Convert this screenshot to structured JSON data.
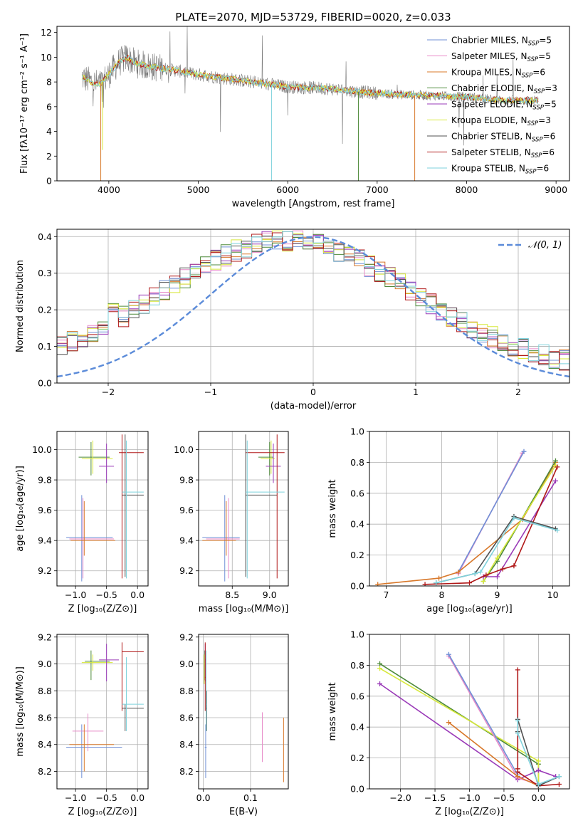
{
  "figure_title": "PLATE=2070, MJD=53729, FIBERID=0020, z=0.033",
  "colors": {
    "Chabrier MILES": "#6f8fd6",
    "Salpeter MILES": "#e88ac8",
    "Kroupa MILES": "#d8782a",
    "Chabrier ELODIE": "#4d8a3a",
    "Salpeter ELODIE": "#9a3ab8",
    "Kroupa ELODIE": "#d7e83a",
    "Chabrier STELIB": "#505050",
    "Salpeter STELIB": "#b01818",
    "Kroupa STELIB": "#7ed2dc",
    "normal_curve": "#5b8bd9",
    "grid": "#b0b0b0"
  },
  "chart_data": [
    {
      "id": "spectrum",
      "type": "line",
      "xlabel": "wavelength [Angstrom, rest frame]",
      "ylabel": "Flux [fλ10⁻¹⁷ erg cm⁻² s⁻¹ A⁻¹]",
      "xlim": [
        3420,
        9150
      ],
      "ylim": [
        0,
        12.5
      ],
      "xticks": [
        4000,
        5000,
        6000,
        7000,
        8000,
        9000
      ],
      "yticks": [
        0,
        2,
        4,
        6,
        8,
        10,
        12
      ],
      "grid": false,
      "legend_position": "top-right",
      "legend": [
        {
          "name": "Chabrier MILES",
          "nssp": "5"
        },
        {
          "name": "Salpeter MILES",
          "nssp": "5"
        },
        {
          "name": "Kroupa MILES",
          "nssp": "6"
        },
        {
          "name": "Chabrier ELODIE",
          "nssp": "3"
        },
        {
          "name": "Salpeter ELODIE",
          "nssp": "5"
        },
        {
          "name": "Kroupa ELODIE",
          "nssp": "3"
        },
        {
          "name": "Chabrier STELIB",
          "nssp": "6"
        },
        {
          "name": "Salpeter STELIB",
          "nssp": "6"
        },
        {
          "name": "Kroupa STELIB",
          "nssp": "6"
        }
      ],
      "continuum_x": [
        3700,
        3800,
        3900,
        4000,
        4100,
        4200,
        4300,
        4500,
        4700,
        5000,
        5300,
        5600,
        6000,
        6400,
        6800,
        7200,
        7600,
        8000,
        8400,
        8800
      ],
      "continuum_y": [
        8.4,
        8.0,
        7.8,
        8.6,
        9.5,
        10.0,
        9.5,
        9.2,
        9.0,
        8.6,
        8.3,
        8.0,
        7.6,
        7.5,
        7.2,
        7.0,
        6.9,
        6.8,
        6.5,
        6.5
      ]
    },
    {
      "id": "residual_histogram",
      "type": "step",
      "xlabel": "(data-model)/error",
      "ylabel": "Normed distribution",
      "xlim": [
        -2.5,
        2.5
      ],
      "ylim": [
        0,
        0.42
      ],
      "xticks": [
        -2,
        -1,
        0,
        1,
        2
      ],
      "yticks": [
        0.0,
        0.1,
        0.2,
        0.3,
        0.4
      ],
      "grid": true,
      "legend_position": "top-right",
      "legend": [
        "𝒩(0, 1)"
      ],
      "bin_width": 0.1,
      "reference_curve": "normal(0,1)"
    },
    {
      "id": "age_vs_Z",
      "type": "errorbar",
      "xlabel": "Z [log₁₀(Z/Z⊙)]",
      "ylabel": "age  [log₁₀(age/yr)]",
      "xlim": [
        -1.3,
        0.17
      ],
      "ylim": [
        9.1,
        10.12
      ],
      "xticks": [
        -1.0,
        -0.5,
        0.0
      ],
      "yticks": [
        9.2,
        9.4,
        9.6,
        9.8,
        10.0
      ],
      "grid": true
    },
    {
      "id": "age_vs_mass",
      "type": "errorbar",
      "xlabel": "mass [log₁₀(M/M⊙)]",
      "ylabel": "",
      "xlim": [
        8.05,
        9.25
      ],
      "ylim": [
        9.1,
        10.12
      ],
      "xticks": [
        8.5,
        9.0
      ],
      "yticks": [
        9.2,
        9.4,
        9.6,
        9.8,
        10.0
      ],
      "grid": true
    },
    {
      "id": "massweight_vs_age",
      "type": "line",
      "xlabel": "age  [log₁₀(age/yr)]",
      "ylabel": "mass weight",
      "xlim": [
        6.7,
        10.3
      ],
      "ylim": [
        0,
        1.0
      ],
      "xticks": [
        7,
        8,
        9,
        10
      ],
      "yticks": [
        0.0,
        0.2,
        0.4,
        0.6,
        0.8,
        1.0
      ],
      "grid": true,
      "series": [
        {
          "name": "Salpeter MILES",
          "x": [
            8.3,
            9.45
          ],
          "y": [
            0.08,
            0.86
          ]
        },
        {
          "name": "Chabrier MILES",
          "x": [
            8.3,
            9.48
          ],
          "y": [
            0.09,
            0.87
          ]
        },
        {
          "name": "Kroupa MILES",
          "x": [
            6.85,
            7.95,
            8.3,
            9.45,
            10.05
          ],
          "y": [
            0.01,
            0.05,
            0.09,
            0.43,
            0.8
          ]
        },
        {
          "name": "Chabrier ELODIE",
          "x": [
            8.75,
            9.0,
            10.05
          ],
          "y": [
            0.03,
            0.16,
            0.81
          ]
        },
        {
          "name": "Kroupa ELODIE",
          "x": [
            8.75,
            9.0,
            10.05
          ],
          "y": [
            0.03,
            0.18,
            0.78
          ]
        },
        {
          "name": "Salpeter ELODIE",
          "x": [
            8.75,
            9.0,
            10.05
          ],
          "y": [
            0.06,
            0.06,
            0.68
          ]
        },
        {
          "name": "Salpeter STELIB",
          "x": [
            7.7,
            8.5,
            8.8,
            9.1,
            9.3,
            10.08
          ],
          "y": [
            0.01,
            0.02,
            0.07,
            0.11,
            0.13,
            0.77
          ]
        },
        {
          "name": "Chabrier STELIB",
          "x": [
            7.9,
            8.6,
            9.3,
            10.05
          ],
          "y": [
            0.02,
            0.08,
            0.45,
            0.37
          ]
        },
        {
          "name": "Kroupa STELIB",
          "x": [
            7.9,
            8.6,
            8.7,
            9.3,
            10.08
          ],
          "y": [
            0.02,
            0.08,
            0.09,
            0.44,
            0.36
          ]
        }
      ]
    },
    {
      "id": "mass_vs_Z",
      "type": "errorbar",
      "xlabel": "Z [log₁₀(Z/Z⊙)]",
      "ylabel": "mass [log₁₀(M/M⊙)]",
      "xlim": [
        -1.3,
        0.17
      ],
      "ylim": [
        8.07,
        9.22
      ],
      "xticks": [
        -1.0,
        -0.5,
        0.0
      ],
      "yticks": [
        8.2,
        8.4,
        8.6,
        8.8,
        9.0,
        9.2
      ],
      "grid": true
    },
    {
      "id": "mass_vs_ebv",
      "type": "errorbar",
      "xlabel": "E(B-V)",
      "ylabel": "",
      "xlim": [
        -0.01,
        0.18
      ],
      "ylim": [
        8.07,
        9.22
      ],
      "xticks": [
        0.0,
        0.1
      ],
      "yticks": [
        8.2,
        8.4,
        8.6,
        8.8,
        9.0,
        9.2
      ],
      "grid": true
    },
    {
      "id": "massweight_vs_Z",
      "type": "line",
      "xlabel": "Z [log₁₀(Z/Z⊙)]",
      "ylabel": "mass weight",
      "xlim": [
        -2.45,
        0.45
      ],
      "ylim": [
        0,
        1.0
      ],
      "xticks": [
        -2.0,
        -1.5,
        -1.0,
        -0.5,
        0.0
      ],
      "yticks": [
        0.0,
        0.2,
        0.4,
        0.6,
        0.8,
        1.0
      ],
      "grid": true,
      "series": [
        {
          "name": "Chabrier ELODIE",
          "x": [
            -2.3,
            0.0,
            0.0
          ],
          "y": [
            0.81,
            0.16,
            0.03
          ]
        },
        {
          "name": "Kroupa ELODIE",
          "x": [
            -2.3,
            0.0,
            0.0
          ],
          "y": [
            0.78,
            0.18,
            0.03
          ]
        },
        {
          "name": "Salpeter ELODIE",
          "x": [
            -2.3,
            -0.3,
            0.0,
            0.25
          ],
          "y": [
            0.68,
            0.06,
            0.12,
            0.08
          ]
        },
        {
          "name": "Salpeter MILES",
          "x": [
            -1.3,
            -0.3,
            0.0
          ],
          "y": [
            0.86,
            0.07,
            0.03
          ]
        },
        {
          "name": "Chabrier MILES",
          "x": [
            -1.3,
            -0.3
          ],
          "y": [
            0.87,
            0.09
          ]
        },
        {
          "name": "Kroupa MILES",
          "x": [
            -1.3,
            -0.3,
            0.0
          ],
          "y": [
            0.43,
            0.08,
            0.02
          ]
        },
        {
          "name": "Salpeter STELIB",
          "x": [
            -0.3,
            -0.3,
            -0.3,
            0.0,
            0.3
          ],
          "y": [
            0.77,
            0.13,
            0.11,
            0.02,
            0.03
          ]
        },
        {
          "name": "Chabrier STELIB",
          "x": [
            -0.3,
            -0.3,
            0.0,
            0.3
          ],
          "y": [
            0.37,
            0.45,
            0.02,
            0.08
          ]
        },
        {
          "name": "Kroupa STELIB",
          "x": [
            -0.3,
            -0.3,
            0.0,
            0.3
          ],
          "y": [
            0.44,
            0.36,
            0.03,
            0.08
          ]
        }
      ]
    }
  ]
}
